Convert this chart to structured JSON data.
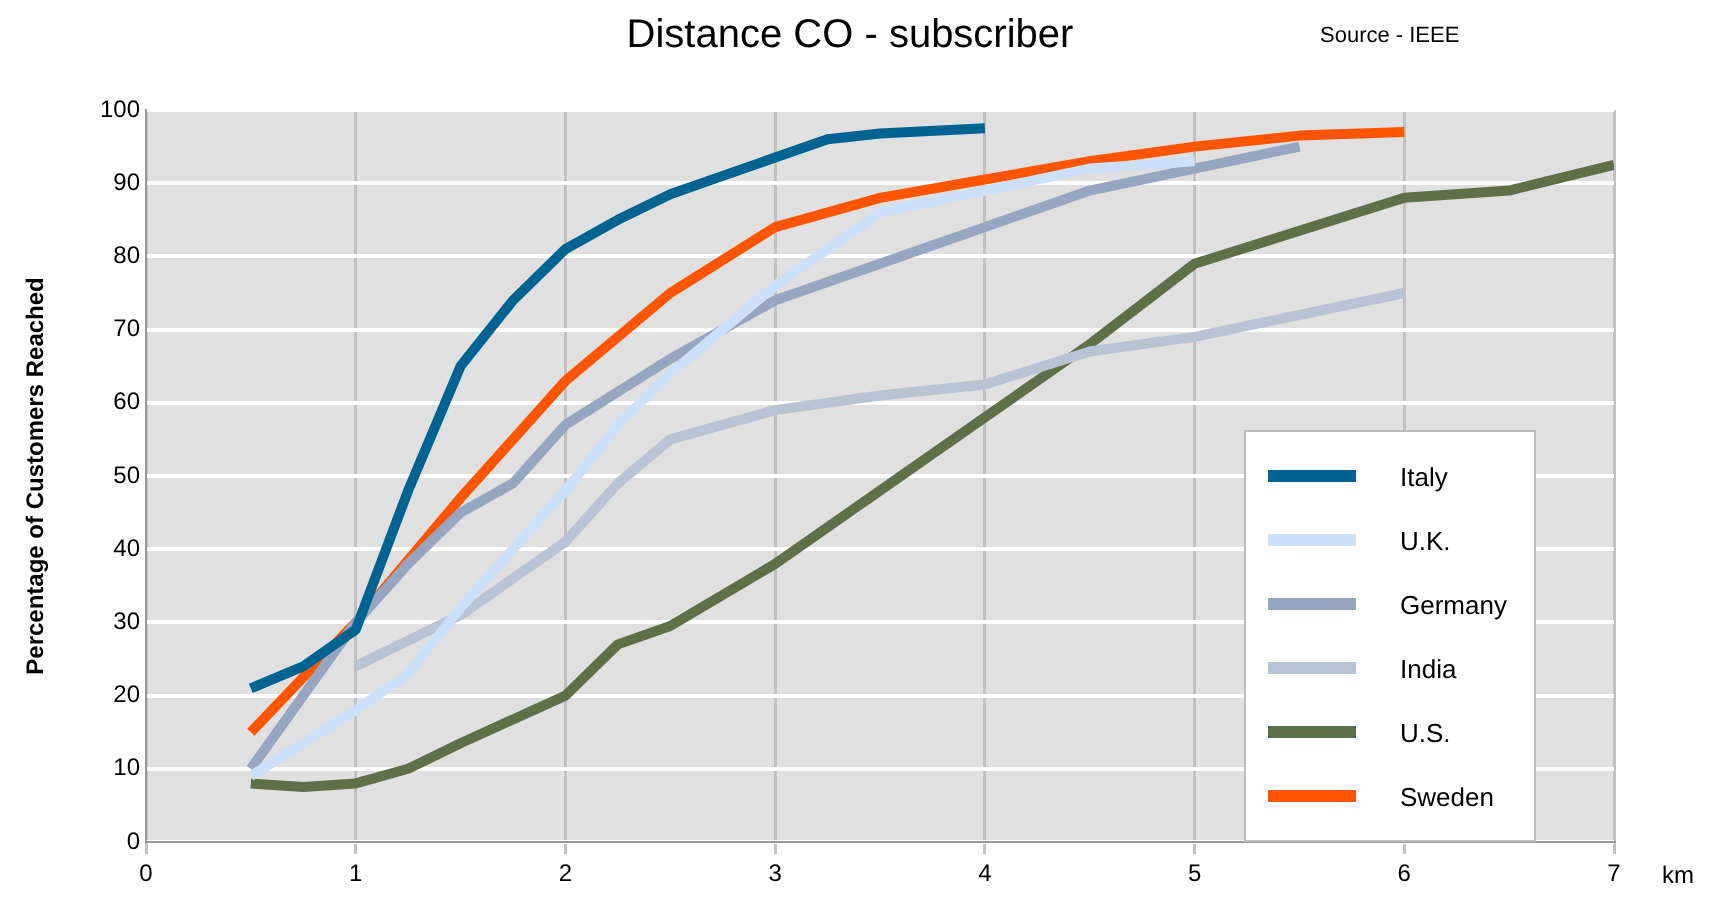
{
  "chart_data": {
    "type": "line",
    "title": "Distance CO - subscriber",
    "xlabel": "km",
    "ylabel": "Percentage of Customers Reached",
    "annotations": [
      "Source - IEEE"
    ],
    "xlim": [
      0,
      7
    ],
    "xticks": [
      0,
      1,
      2,
      3,
      4,
      5,
      6,
      7
    ],
    "ylim": [
      0,
      100
    ],
    "yticks": [
      0,
      10,
      20,
      30,
      40,
      50,
      60,
      70,
      80,
      90,
      100
    ],
    "grid": true,
    "legend": "bottom right",
    "marker": "none",
    "line_style": "solid",
    "series": [
      {
        "name": "Italy",
        "color": "#006391",
        "x": [
          0.5,
          0.75,
          1,
          1.25,
          1.5,
          1.75,
          2,
          2.25,
          2.5,
          2.75,
          3,
          3.25,
          3.5,
          4
        ],
        "values": [
          21,
          24,
          29,
          48,
          65,
          74,
          81,
          85,
          88.5,
          91,
          93.5,
          96,
          96.8,
          97.5
        ]
      },
      {
        "name": "U.K.",
        "color": "#cce0fa",
        "x": [
          0.5,
          1,
          1.25,
          1.5,
          1.75,
          2,
          2.25,
          2.5,
          2.75,
          3,
          3.5,
          4,
          4.5,
          5
        ],
        "values": [
          9,
          18,
          23,
          32,
          40,
          48,
          57,
          64,
          70,
          76,
          86,
          89,
          92,
          93
        ]
      },
      {
        "name": "Germany",
        "color": "#96a5c0",
        "x": [
          0.5,
          1,
          1.25,
          1.5,
          1.75,
          2,
          2.5,
          2.75,
          3,
          3.5,
          4,
          4.5,
          5,
          5.5
        ],
        "values": [
          10,
          30,
          38,
          45,
          49,
          57,
          66,
          70,
          74,
          79,
          84,
          89,
          92,
          95
        ]
      },
      {
        "name": "India",
        "color": "#b8c3d3",
        "x": [
          1,
          1.5,
          2,
          2.25,
          2.5,
          3,
          3.5,
          4,
          4.5,
          5,
          6
        ],
        "values": [
          24,
          31,
          41,
          49,
          55,
          59,
          61,
          62.5,
          67,
          69,
          75
        ]
      },
      {
        "name": "U.S.",
        "color": "#5e7048",
        "x": [
          0.5,
          0.75,
          1,
          1.25,
          1.5,
          2,
          2.25,
          2.5,
          3,
          3.5,
          4,
          4.5,
          5,
          5.5,
          6,
          6.5,
          7
        ],
        "values": [
          8,
          7.5,
          8,
          10,
          13.5,
          20,
          27,
          29.5,
          38,
          48,
          58,
          68,
          79,
          83.5,
          88,
          89,
          92.5
        ]
      },
      {
        "name": "Sweden",
        "color": "#ff5500",
        "x": [
          0.5,
          1,
          1.5,
          2,
          2.5,
          3,
          3.5,
          4,
          4.5,
          5,
          5.5,
          6
        ],
        "values": [
          15,
          30,
          47,
          63,
          75,
          84,
          88,
          90.5,
          93,
          95,
          96.5,
          97
        ]
      }
    ]
  }
}
